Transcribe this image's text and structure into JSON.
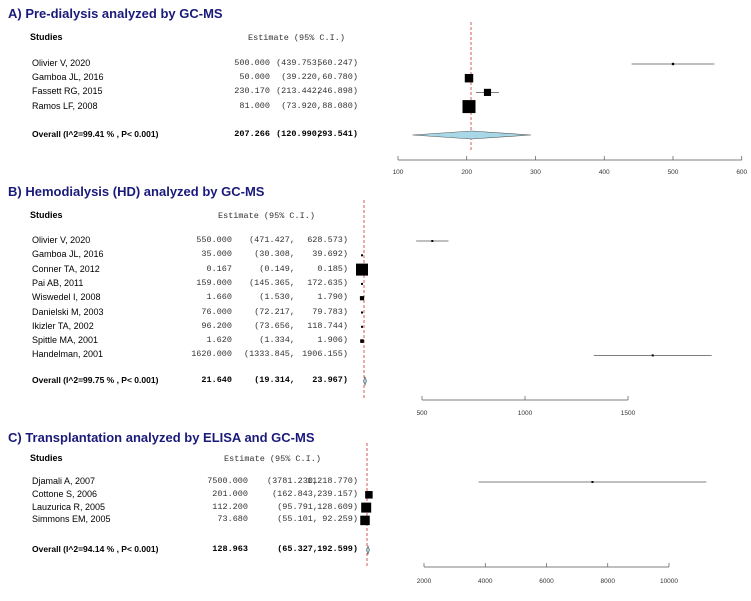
{
  "chart_data": [
    {
      "type": "forest",
      "title": "A) Pre-dialysis analyzed by GC-MS",
      "col_studies": "Studies",
      "col_estimate": "Estimate (95% C.I.)",
      "rows": [
        {
          "study": "Olivier V, 2020",
          "estimate": 500.0,
          "lower": 439.753,
          "upper": 560.247,
          "est_text": "500.000",
          "lo_text": "(439.753,",
          "hi_text": "560.247)",
          "weight": 0.18
        },
        {
          "study": "Gamboa JL, 2016",
          "estimate": 50.0,
          "lower": 39.22,
          "upper": 60.78,
          "est_text": "50.000",
          "lo_text": "(39.220,",
          "hi_text": "60.780)",
          "weight": 0.65
        },
        {
          "study": "Fassett RG, 2015",
          "estimate": 230.17,
          "lower": 213.442,
          "upper": 246.898,
          "est_text": "230.170",
          "lo_text": "(213.442,",
          "hi_text": "246.898)",
          "weight": 0.55
        },
        {
          "study": "Ramos LF, 2008",
          "estimate": 81.0,
          "lower": 73.92,
          "upper": 88.08,
          "est_text": "81.000",
          "lo_text": "(73.920,",
          "hi_text": "88.080)",
          "weight": 1.0
        }
      ],
      "overall": {
        "label": "Overall (I^2=99.41 % , P< 0.001)",
        "estimate": 207.266,
        "lower": 120.99,
        "upper": 293.541,
        "est_text": "207.266",
        "lo_text": "(120.990,",
        "hi_text": "293.541)"
      },
      "xticks": [
        100,
        200,
        300,
        400,
        500,
        600
      ],
      "diamond_color": "#a8d8e8"
    },
    {
      "type": "forest",
      "title": "B) Hemodialysis (HD) analyzed by GC-MS",
      "col_studies": "Studies",
      "col_estimate": "Estimate (95% C.I.)",
      "rows": [
        {
          "study": "Olivier V, 2020",
          "estimate": 550.0,
          "lower": 471.427,
          "upper": 628.573,
          "est_text": "550.000",
          "lo_text": "(471.427,",
          "hi_text": "628.573)",
          "weight": 0.0
        },
        {
          "study": "Gamboa JL, 2016",
          "estimate": 35.0,
          "lower": 30.308,
          "upper": 39.692,
          "est_text": "35.000",
          "lo_text": "(30.308,",
          "hi_text": "39.692)",
          "weight": 0.1
        },
        {
          "study": "Conner TA, 2012",
          "estimate": 0.167,
          "lower": 0.149,
          "upper": 0.185,
          "est_text": "0.167",
          "lo_text": "(0.149,",
          "hi_text": "0.185)",
          "weight": 1.0
        },
        {
          "study": "Pai AB, 2011",
          "estimate": 159.0,
          "lower": 145.365,
          "upper": 172.635,
          "est_text": "159.000",
          "lo_text": "(145.365,",
          "hi_text": "172.635)",
          "weight": 0.05
        },
        {
          "study": "Wiswedel I, 2008",
          "estimate": 1.66,
          "lower": 1.53,
          "upper": 1.79,
          "est_text": "1.660",
          "lo_text": "(1.530,",
          "hi_text": "1.790)",
          "weight": 0.35
        },
        {
          "study": "Danielski M, 2003",
          "estimate": 76.0,
          "lower": 72.217,
          "upper": 79.783,
          "est_text": "76.000",
          "lo_text": "(72.217,",
          "hi_text": "79.783)",
          "weight": 0.12
        },
        {
          "study": "Ikizler TA, 2002",
          "estimate": 96.2,
          "lower": 73.656,
          "upper": 118.744,
          "est_text": "96.200",
          "lo_text": "(73.656,",
          "hi_text": "118.744)",
          "weight": 0.05
        },
        {
          "study": "Spittle MA, 2001",
          "estimate": 1.62,
          "lower": 1.334,
          "upper": 1.906,
          "est_text": "1.620",
          "lo_text": "(1.334,",
          "hi_text": "1.906)",
          "weight": 0.3
        },
        {
          "study": "Handelman, 2001",
          "estimate": 1620.0,
          "lower": 1333.845,
          "upper": 1906.155,
          "est_text": "1620.000",
          "lo_text": "(1333.845,",
          "hi_text": "1906.155)",
          "weight": 0.0
        }
      ],
      "overall": {
        "label": "Overall (I^2=99.75 % , P< 0.001)",
        "estimate": 21.64,
        "lower": 19.314,
        "upper": 23.967,
        "est_text": "21.640",
        "lo_text": "(19.314,",
        "hi_text": "23.967)"
      },
      "xticks": [
        500,
        1000,
        1500
      ],
      "diamond_color": "#a8d8e8"
    },
    {
      "type": "forest",
      "title": "C) Transplantation analyzed by ELISA and GC-MS",
      "col_studies": "Studies",
      "col_estimate": "Estimate (95% C.I.)",
      "rows": [
        {
          "study": "Djamali A, 2007",
          "estimate": 7500.0,
          "lower": 3781.23,
          "upper": 11218.77,
          "est_text": "7500.000",
          "lo_text": "(3781.230,",
          "hi_text": "11218.770)",
          "weight": 0.0
        },
        {
          "study": "Cottone S, 2006",
          "estimate": 201.0,
          "lower": 162.843,
          "upper": 239.157,
          "est_text": "201.000",
          "lo_text": "(162.843,",
          "hi_text": "239.157)",
          "weight": 0.75
        },
        {
          "study": "Lauzurica R, 2005",
          "estimate": 112.2,
          "lower": 95.791,
          "upper": 128.609,
          "est_text": "112.200",
          "lo_text": "(95.791,",
          "hi_text": "128.609)",
          "weight": 1.0
        },
        {
          "study": "Simmons EM, 2005",
          "estimate": 73.68,
          "lower": 55.101,
          "upper": 92.259,
          "est_text": "73.680",
          "lo_text": "(55.101,",
          "hi_text": "92.259)",
          "weight": 0.95
        }
      ],
      "overall": {
        "label": "Overall (I^2=94.14 % , P< 0.001)",
        "estimate": 128.963,
        "lower": 65.327,
        "upper": 192.599,
        "est_text": "128.963",
        "lo_text": "(65.327,",
        "hi_text": "192.599)"
      },
      "xticks": [
        2000,
        4000,
        6000,
        8000,
        10000
      ],
      "diamond_color": "#a8d8e8"
    }
  ]
}
